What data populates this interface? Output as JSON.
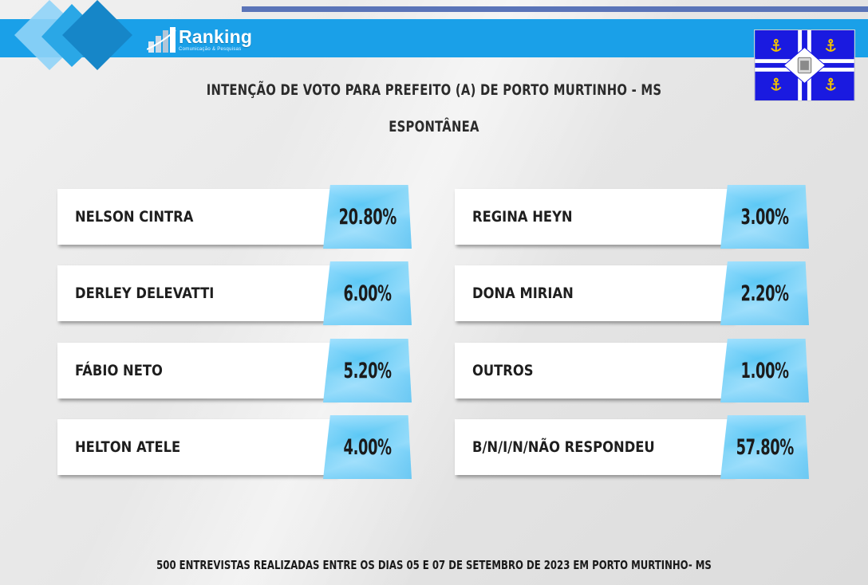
{
  "header": {
    "logo_name": "Ranking",
    "logo_sub": "Comunicação & Pesquisas"
  },
  "title": "INTENÇÃO DE VOTO PARA PREFEITO (A) DE PORTO MURTINHO - MS",
  "subtitle": "ESPONTÂNEA",
  "footer": "500 ENTREVISTAS REALIZADAS ENTRE OS DIAS 05 E 07 DE SETEMBRO DE 2023 EM PORTO MURTINHO- MS",
  "colors": {
    "band": "#1aa0e8",
    "thin_line": "#5a74b8",
    "card_blue": "#5cc8f5",
    "flag_blue": "#1a1ae0",
    "anchor": "#f2c200"
  },
  "chart_data": {
    "type": "table",
    "title": "INTENÇÃO DE VOTO PARA PREFEITO (A) DE PORTO MURTINHO - MS",
    "subtitle": "ESPONTÂNEA",
    "categories": [
      "NELSON CINTRA",
      "DERLEY DELEVATTI",
      "FÁBIO NETO",
      "HELTON ATELE",
      "REGINA HEYN",
      "DONA MIRIAN",
      "OUTROS",
      "B/N/I/N/NÃO RESPONDEU"
    ],
    "values": [
      20.8,
      6.0,
      5.2,
      4.0,
      3.0,
      2.2,
      1.0,
      57.8
    ],
    "labels": [
      "20.80%",
      "6.00%",
      "5.20%",
      "4.00%",
      "3.00%",
      "2.20%",
      "1.00%",
      "57.80%"
    ],
    "unit": "%"
  }
}
